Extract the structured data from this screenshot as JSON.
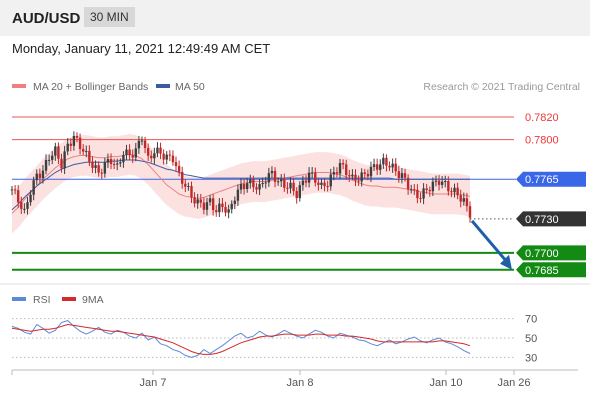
{
  "header": {
    "symbol": "AUD/USD",
    "timeframe": "30 MIN"
  },
  "datetime": "Monday, January 11, 2021 12:49:49 AM CET",
  "legend": {
    "ma20_bb": "MA 20 + Bollinger Bands",
    "ma50": "MA 50",
    "copyright": "Research © 2021 Trading Central"
  },
  "rsi_legend": {
    "rsi": "RSI",
    "ma9": "9MA"
  },
  "colors": {
    "resistance": "#e83a3a",
    "support": "#138a13",
    "pivot": "#3a66e8",
    "current": "#333333",
    "arrow": "#1f5fa8",
    "bollinger": "#fbd7d7",
    "ma20": "#f08080",
    "ma50": "#3b5ba5",
    "rsi": "#5b8ad8",
    "rsi_ma": "#d42a2a"
  },
  "chart_data": [
    {
      "type": "candlestick",
      "title": "AUD/USD 30 MIN",
      "x_tick_labels": [
        "Jan 7",
        "Jan 8",
        "Jan 10",
        "Jan 26"
      ],
      "ylim": [
        0.7676,
        0.7835
      ],
      "levels": [
        {
          "value": 0.782,
          "label": "0.7820",
          "kind": "resistance"
        },
        {
          "value": 0.78,
          "label": "0.7800",
          "kind": "resistance"
        },
        {
          "value": 0.7765,
          "label": "0.7765",
          "kind": "pivot"
        },
        {
          "value": 0.773,
          "label": "0.7730",
          "kind": "current"
        },
        {
          "value": 0.77,
          "label": "0.7700",
          "kind": "support"
        },
        {
          "value": 0.7685,
          "label": "0.7685",
          "kind": "support"
        }
      ],
      "forecast_arrow": {
        "from": 0.773,
        "to": 0.7685,
        "direction": "down"
      },
      "price_path": [
        0.7756,
        0.7747,
        0.7735,
        0.7755,
        0.7768,
        0.7772,
        0.7785,
        0.779,
        0.7778,
        0.7795,
        0.7802,
        0.7795,
        0.7786,
        0.7778,
        0.777,
        0.7778,
        0.7782,
        0.7775,
        0.7789,
        0.7786,
        0.779,
        0.7803,
        0.7782,
        0.779,
        0.7788,
        0.7784,
        0.7784,
        0.7768,
        0.776,
        0.775,
        0.7744,
        0.7742,
        0.7745,
        0.7737,
        0.7742,
        0.7735,
        0.775,
        0.7758,
        0.7762,
        0.776,
        0.7757,
        0.7766,
        0.777,
        0.7763,
        0.776,
        0.7758,
        0.7752,
        0.7762,
        0.777,
        0.7765,
        0.7758,
        0.7762,
        0.777,
        0.7778,
        0.7772,
        0.7765,
        0.7766,
        0.7769,
        0.7774,
        0.7777,
        0.778,
        0.7778,
        0.7772,
        0.7768,
        0.776,
        0.7752,
        0.775,
        0.7756,
        0.776,
        0.7764,
        0.776,
        0.7755,
        0.7752,
        0.7745,
        0.7735
      ],
      "ma20_path": [
        0.7735,
        0.774,
        0.7747,
        0.7753,
        0.7759,
        0.7765,
        0.777,
        0.7775,
        0.7779,
        0.7783,
        0.7785,
        0.7786,
        0.7786,
        0.7785,
        0.7784,
        0.7784,
        0.7785,
        0.7785,
        0.7786,
        0.7787,
        0.7786,
        0.7783,
        0.7778,
        0.7772,
        0.7766,
        0.776,
        0.7756,
        0.7752,
        0.775,
        0.7749,
        0.7748,
        0.7749,
        0.7751,
        0.7753,
        0.7755,
        0.7757,
        0.7759,
        0.7761,
        0.7762,
        0.7763,
        0.7763,
        0.7763,
        0.7764,
        0.7765,
        0.7766,
        0.7767,
        0.7768,
        0.7769,
        0.777,
        0.7771,
        0.7771,
        0.7771,
        0.777,
        0.7769,
        0.7767,
        0.7764,
        0.7762,
        0.776,
        0.7759,
        0.7759,
        0.7758,
        0.7758,
        0.7758,
        0.7757,
        0.7756,
        0.7755,
        0.7754,
        0.7753,
        0.7752,
        0.7752,
        0.7752,
        0.7752,
        0.7752,
        0.7751,
        0.775
      ],
      "ma50_path": [
        0.7738,
        0.7743,
        0.7749,
        0.7754,
        0.7759,
        0.7763,
        0.7767,
        0.7771,
        0.7774,
        0.7776,
        0.7778,
        0.7779,
        0.778,
        0.778,
        0.778,
        0.778,
        0.7781,
        0.7781,
        0.7782,
        0.7782,
        0.7782,
        0.7781,
        0.778,
        0.7778,
        0.7776,
        0.7774,
        0.7773,
        0.7771,
        0.7769,
        0.7768,
        0.7767,
        0.7766,
        0.7766,
        0.7766,
        0.7766,
        0.7766,
        0.7766,
        0.7766,
        0.7766,
        0.7766,
        0.7766,
        0.7766,
        0.7766,
        0.7766,
        0.7766,
        0.7766,
        0.7766,
        0.7766,
        0.7766,
        0.7766,
        0.7766,
        0.7766,
        0.7766,
        0.7766,
        0.7766,
        0.7766,
        0.7766,
        0.7766,
        0.7766,
        0.7766,
        0.7766,
        0.7766,
        0.7765,
        0.7765,
        0.7765,
        0.7765,
        0.7765,
        0.7765,
        0.7765,
        0.7765,
        0.7765,
        0.7765,
        0.7765,
        0.7765,
        0.7765
      ],
      "bollinger_width": 0.0018
    },
    {
      "type": "line",
      "title": "RSI",
      "ylim": [
        20,
        80
      ],
      "y_ticks": [
        70,
        50,
        30
      ],
      "series": [
        {
          "name": "RSI",
          "values": [
            62,
            60,
            56,
            54,
            64,
            60,
            55,
            58,
            66,
            68,
            62,
            57,
            54,
            57,
            61,
            56,
            54,
            58,
            56,
            52,
            50,
            55,
            48,
            51,
            44,
            42,
            38,
            36,
            32,
            30,
            32,
            38,
            34,
            38,
            42,
            47,
            52,
            55,
            50,
            52,
            57,
            53,
            51,
            54,
            58,
            55,
            52,
            50,
            54,
            58,
            56,
            52,
            50,
            55,
            53,
            51,
            48,
            47,
            44,
            42,
            45,
            48,
            44,
            46,
            49,
            51,
            47,
            45,
            48,
            50,
            46,
            44,
            41,
            37,
            34
          ]
        },
        {
          "name": "9MA",
          "values": [
            60,
            59,
            58,
            57,
            58,
            59,
            59,
            60,
            62,
            64,
            63,
            62,
            61,
            60,
            59,
            58,
            57,
            57,
            56,
            55,
            54,
            53,
            52,
            51,
            49,
            47,
            45,
            42,
            39,
            36,
            34,
            33,
            33,
            34,
            36,
            39,
            42,
            45,
            47,
            49,
            51,
            52,
            52,
            53,
            54,
            54,
            53,
            53,
            53,
            54,
            54,
            53,
            53,
            53,
            52,
            52,
            51,
            50,
            49,
            47,
            46,
            46,
            46,
            46,
            46,
            46,
            46,
            46,
            46,
            47,
            47,
            46,
            45,
            44,
            42
          ]
        }
      ]
    }
  ]
}
